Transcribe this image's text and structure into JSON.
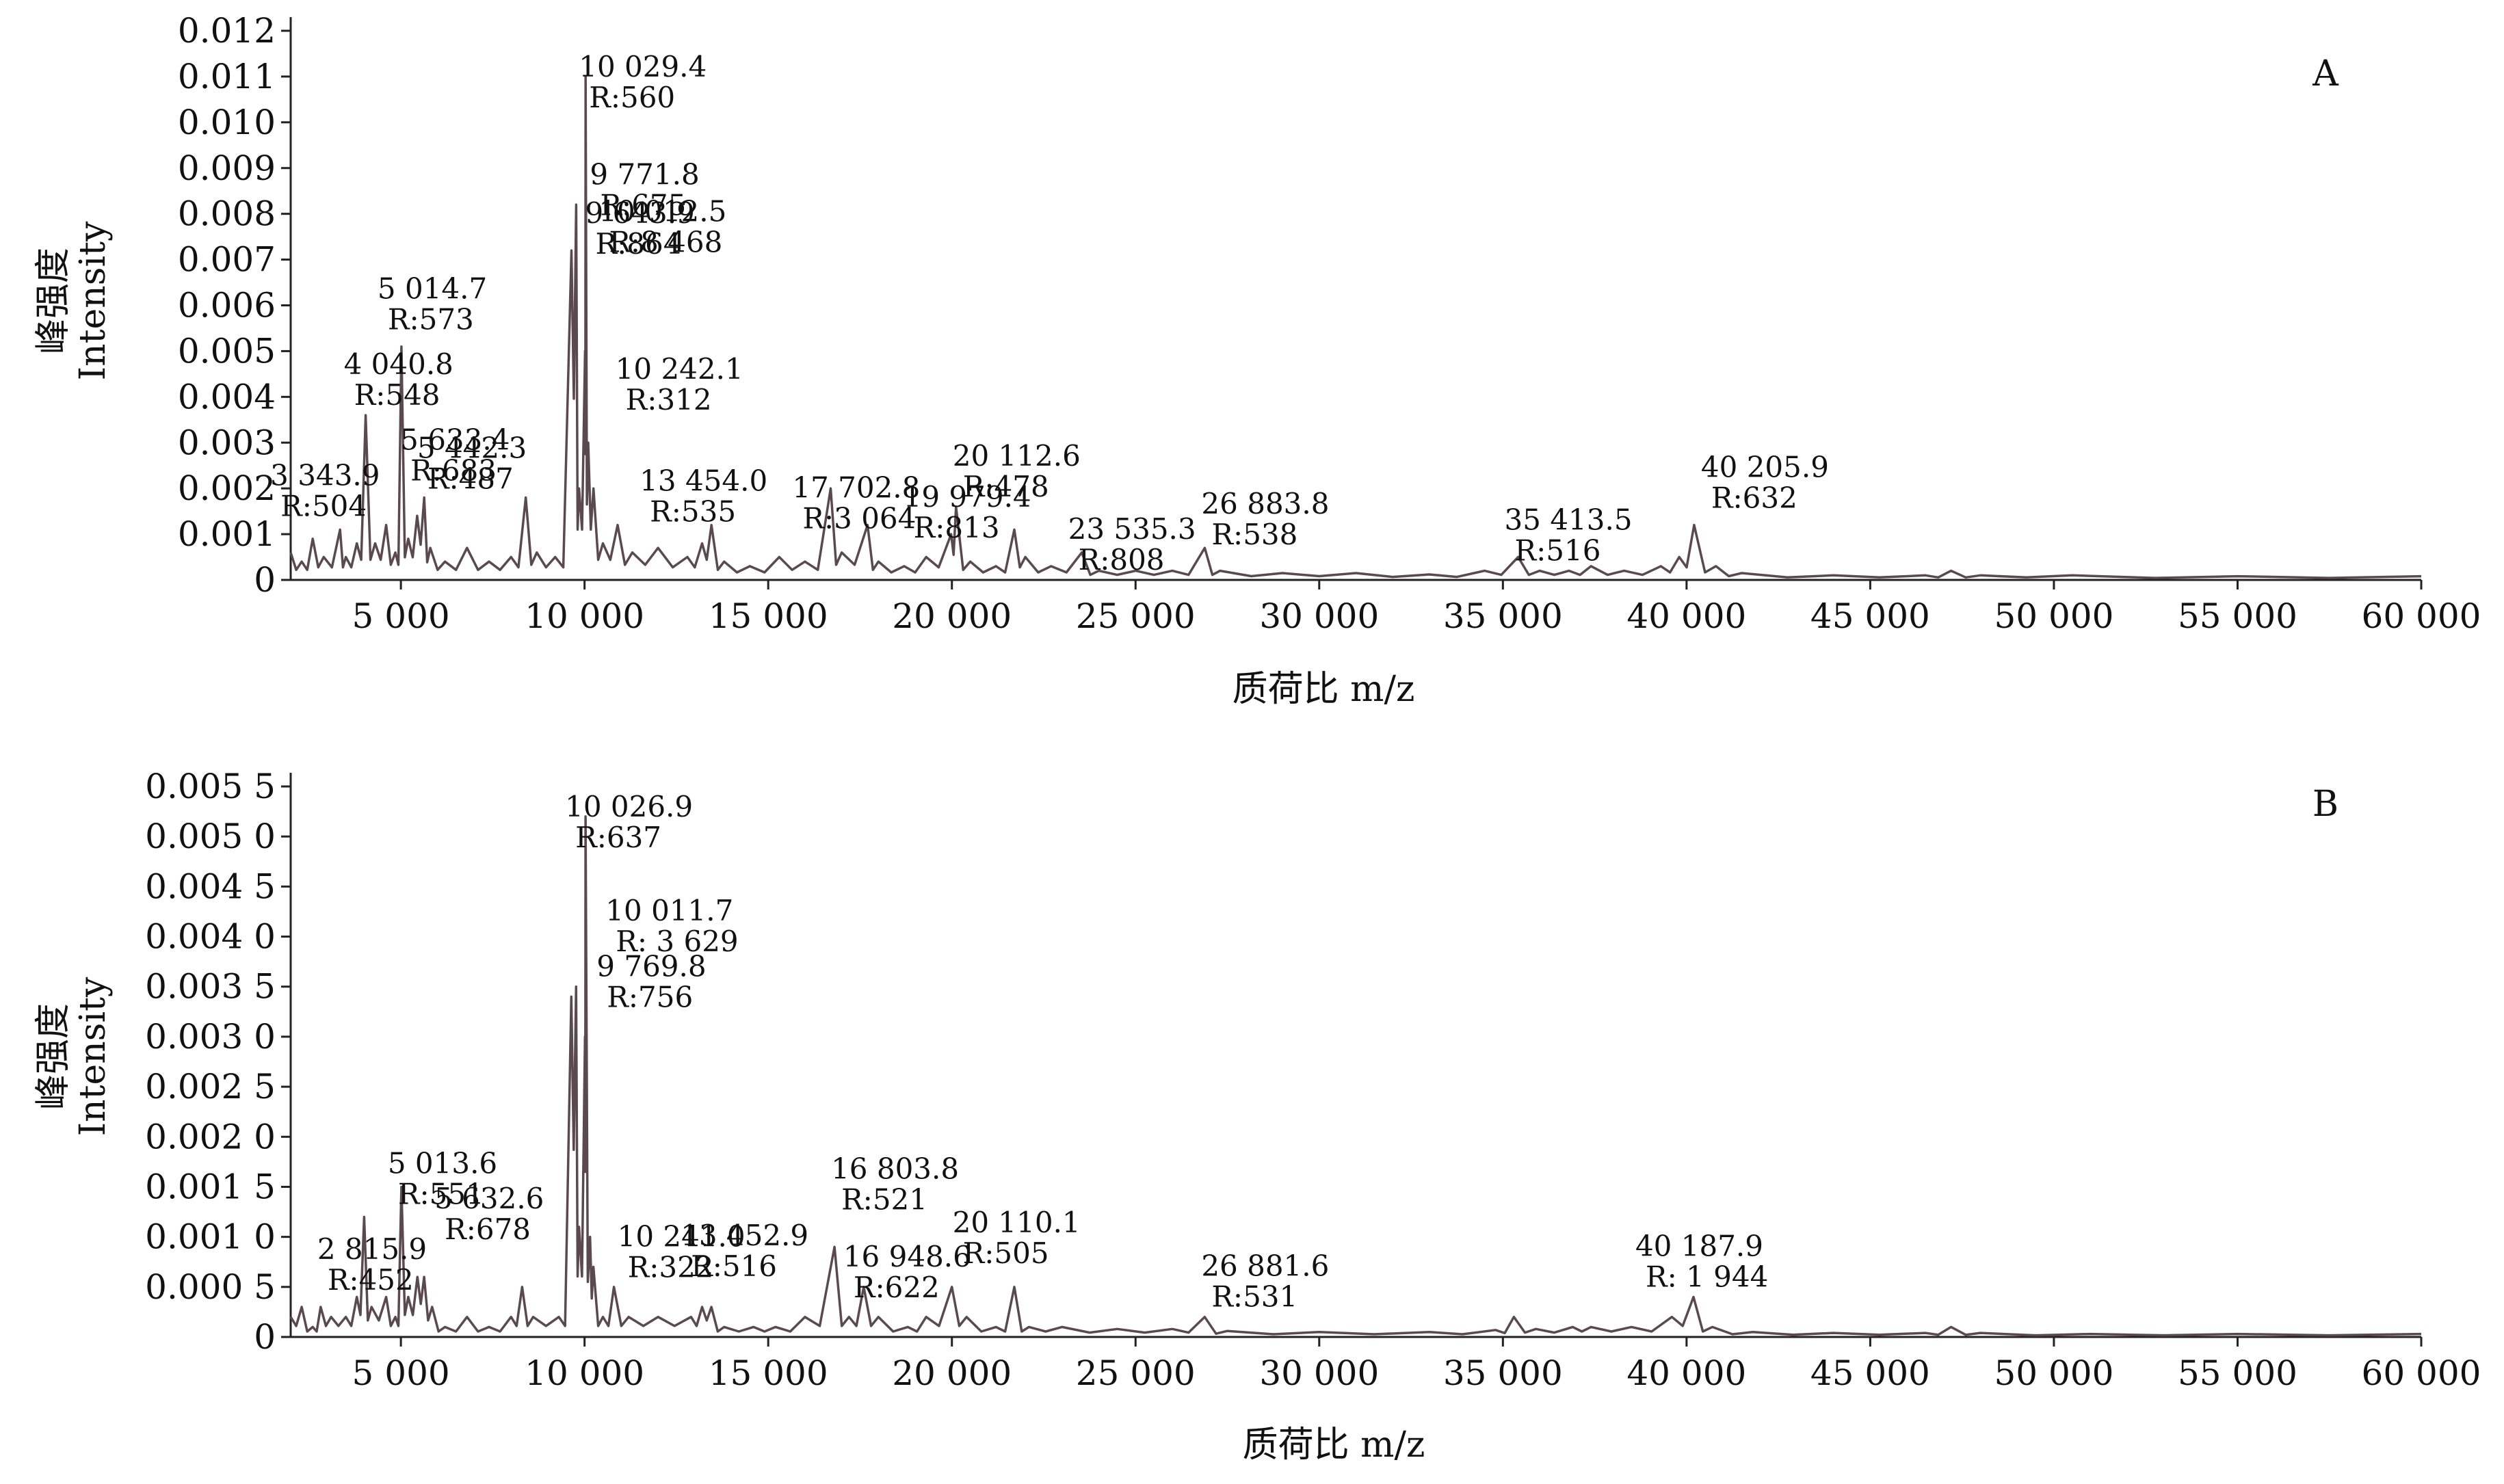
{
  "chart_data": [
    {
      "type": "line",
      "panel_label": "A",
      "xlabel": "质荷比 m/z",
      "ylabel_cn": "峰强度",
      "ylabel_en": "Intensity",
      "xlim": [
        2000,
        60000
      ],
      "ylim": [
        0,
        0.012
      ],
      "x_ticks": [
        5000,
        10000,
        15000,
        20000,
        25000,
        30000,
        35000,
        40000,
        45000,
        50000,
        55000,
        60000
      ],
      "x_tick_labels": [
        "5 000",
        "10 000",
        "15 000",
        "20 000",
        "25 000",
        "30 000",
        "35 000",
        "40 000",
        "45 000",
        "50 000",
        "55 000",
        "60 000"
      ],
      "y_ticks": [
        0,
        0.001,
        0.002,
        0.003,
        0.004,
        0.005,
        0.006,
        0.007,
        0.008,
        0.009,
        0.01,
        0.011,
        0.012
      ],
      "y_tick_labels": [
        "0",
        "0.001",
        "0.002",
        "0.003",
        "0.004",
        "0.005",
        "0.006",
        "0.007",
        "0.008",
        "0.009",
        "0.010",
        "0.011",
        "0.012"
      ],
      "line_color": "#5a4a50",
      "grid": false,
      "spectrum": [
        [
          2000,
          0.0006
        ],
        [
          2300,
          0.0004
        ],
        [
          2600,
          0.0009
        ],
        [
          2900,
          0.0005
        ],
        [
          3344,
          0.0011
        ],
        [
          3500,
          0.0005
        ],
        [
          3800,
          0.0008
        ],
        [
          4041,
          0.0036
        ],
        [
          4300,
          0.0008
        ],
        [
          4600,
          0.0012
        ],
        [
          4850,
          0.0006
        ],
        [
          5015,
          0.0051
        ],
        [
          5200,
          0.0009
        ],
        [
          5443,
          0.0014
        ],
        [
          5634,
          0.0018
        ],
        [
          5800,
          0.0007
        ],
        [
          6200,
          0.0004
        ],
        [
          6800,
          0.0007
        ],
        [
          7400,
          0.0004
        ],
        [
          8000,
          0.0005
        ],
        [
          8400,
          0.0018
        ],
        [
          8700,
          0.0006
        ],
        [
          9200,
          0.0005
        ],
        [
          9644,
          0.0072
        ],
        [
          9772,
          0.0082
        ],
        [
          9850,
          0.002
        ],
        [
          10013,
          0.005
        ],
        [
          10029,
          0.011
        ],
        [
          10100,
          0.003
        ],
        [
          10242,
          0.002
        ],
        [
          10500,
          0.0008
        ],
        [
          10900,
          0.0012
        ],
        [
          11300,
          0.0006
        ],
        [
          12000,
          0.0007
        ],
        [
          12800,
          0.0005
        ],
        [
          13200,
          0.0008
        ],
        [
          13454,
          0.0012
        ],
        [
          13800,
          0.0004
        ],
        [
          14500,
          0.0003
        ],
        [
          15300,
          0.0005
        ],
        [
          16000,
          0.0004
        ],
        [
          16700,
          0.002
        ],
        [
          17000,
          0.0006
        ],
        [
          17703,
          0.0012
        ],
        [
          18000,
          0.0004
        ],
        [
          18700,
          0.0003
        ],
        [
          19300,
          0.0005
        ],
        [
          19979,
          0.001
        ],
        [
          20113,
          0.0016
        ],
        [
          20500,
          0.0004
        ],
        [
          21200,
          0.0003
        ],
        [
          21700,
          0.0011
        ],
        [
          22000,
          0.0005
        ],
        [
          22700,
          0.0003
        ],
        [
          23535,
          0.0006
        ],
        [
          24000,
          0.0002
        ],
        [
          25000,
          0.0002
        ],
        [
          26000,
          0.0002
        ],
        [
          26884,
          0.0007
        ],
        [
          27300,
          0.0002
        ],
        [
          29000,
          0.00015
        ],
        [
          31000,
          0.00015
        ],
        [
          33000,
          0.00012
        ],
        [
          34500,
          0.0002
        ],
        [
          35414,
          0.0005
        ],
        [
          36000,
          0.0002
        ],
        [
          36800,
          0.0002
        ],
        [
          37400,
          0.0003
        ],
        [
          38300,
          0.0002
        ],
        [
          39300,
          0.0003
        ],
        [
          39800,
          0.0005
        ],
        [
          40206,
          0.0012
        ],
        [
          40800,
          0.0003
        ],
        [
          41500,
          0.00015
        ],
        [
          44000,
          0.0001
        ],
        [
          46500,
          0.0001
        ],
        [
          47200,
          0.0002
        ],
        [
          48000,
          0.0001
        ],
        [
          50500,
          0.0001
        ],
        [
          55000,
          8e-05
        ],
        [
          60000,
          8e-05
        ]
      ],
      "peak_labels": [
        {
          "x": 4040.8,
          "y": 0.0036,
          "mz_label": "4 040.8",
          "r_label": "R:548"
        },
        {
          "x": 5014.7,
          "y": 0.0051,
          "mz_label": "5 014.7",
          "r_label": "R:573"
        },
        {
          "x": 3343.9,
          "y": 0.0011,
          "mz_label": "3 343.9",
          "r_label": "R:504"
        },
        {
          "x": 5633.4,
          "y": 0.0018,
          "mz_label": "5 633.4",
          "r_label": "R:683"
        },
        {
          "x": 5442.3,
          "y": 0.0014,
          "mz_label": "5 442.3",
          "r_label": "R:487"
        },
        {
          "x": 10029.4,
          "y": 0.011,
          "mz_label": "10 029.4",
          "r_label": "R:560"
        },
        {
          "x": 9771.8,
          "y": 0.0082,
          "mz_label": "9 771.8",
          "r_label": "R:675"
        },
        {
          "x": 10012.5,
          "y": 0.005,
          "mz_label": "10 012.5",
          "r_label": "R:8 468"
        },
        {
          "x": 10242.1,
          "y": 0.002,
          "mz_label": "10 242.1",
          "r_label": "R:312"
        },
        {
          "x": 9643.9,
          "y": 0.0072,
          "mz_label": "9 643.9",
          "r_label": "R:864"
        },
        {
          "x": 13454.0,
          "y": 0.0012,
          "mz_label": "13 454.0",
          "r_label": "R:535"
        },
        {
          "x": 17702.8,
          "y": 0.0012,
          "mz_label": "17 702.8",
          "r_label": "R:3 064"
        },
        {
          "x": 20112.6,
          "y": 0.0016,
          "mz_label": "20 112.6",
          "r_label": "R:478"
        },
        {
          "x": 19979.4,
          "y": 0.001,
          "mz_label": "19 979.4",
          "r_label": "R:813"
        },
        {
          "x": 23535.3,
          "y": 0.0006,
          "mz_label": "23 535.3",
          "r_label": "R:808"
        },
        {
          "x": 26883.8,
          "y": 0.0007,
          "mz_label": "26 883.8",
          "r_label": "R:538"
        },
        {
          "x": 35413.5,
          "y": 0.0005,
          "mz_label": "35 413.5",
          "r_label": "R:516"
        },
        {
          "x": 40205.9,
          "y": 0.0012,
          "mz_label": "40 205.9",
          "r_label": "R:632"
        }
      ]
    },
    {
      "type": "line",
      "panel_label": "B",
      "xlabel": "质荷比 m/z",
      "ylabel_cn": "峰强度",
      "ylabel_en": "Intensity",
      "xlim": [
        2000,
        60000
      ],
      "ylim": [
        0,
        0.0055
      ],
      "x_ticks": [
        5000,
        10000,
        15000,
        20000,
        25000,
        30000,
        35000,
        40000,
        45000,
        50000,
        55000,
        60000
      ],
      "x_tick_labels": [
        "5 000",
        "10 000",
        "15 000",
        "20 000",
        "25 000",
        "30 000",
        "35 000",
        "40 000",
        "45 000",
        "50 000",
        "55 000",
        "60 000"
      ],
      "y_ticks": [
        0,
        0.0005,
        0.001,
        0.0015,
        0.002,
        0.0025,
        0.003,
        0.0035,
        0.004,
        0.0045,
        0.005,
        0.0055
      ],
      "y_tick_labels": [
        "0",
        "0.000 5",
        "0.001 0",
        "0.001 5",
        "0.002 0",
        "0.002 5",
        "0.003 0",
        "0.003 5",
        "0.004 0",
        "0.004 5",
        "0.005 0",
        "0.005 5"
      ],
      "line_color": "#5a4a50",
      "grid": false,
      "spectrum": [
        [
          2000,
          0.0002
        ],
        [
          2300,
          0.0003
        ],
        [
          2600,
          0.0001
        ],
        [
          2816,
          0.0003
        ],
        [
          3100,
          0.0002
        ],
        [
          3500,
          0.0002
        ],
        [
          3800,
          0.0004
        ],
        [
          4000,
          0.0012
        ],
        [
          4200,
          0.0003
        ],
        [
          4600,
          0.0004
        ],
        [
          4850,
          0.0002
        ],
        [
          5014,
          0.0015
        ],
        [
          5200,
          0.0004
        ],
        [
          5450,
          0.0006
        ],
        [
          5633,
          0.0006
        ],
        [
          5850,
          0.0003
        ],
        [
          6200,
          0.0001
        ],
        [
          6800,
          0.0002
        ],
        [
          7400,
          0.0001
        ],
        [
          8000,
          0.0002
        ],
        [
          8300,
          0.0005
        ],
        [
          8600,
          0.0002
        ],
        [
          9300,
          0.0002
        ],
        [
          9640,
          0.0034
        ],
        [
          9770,
          0.0035
        ],
        [
          9850,
          0.0011
        ],
        [
          10012,
          0.003
        ],
        [
          10027,
          0.0052
        ],
        [
          10150,
          0.001
        ],
        [
          10241,
          0.0007
        ],
        [
          10500,
          0.0002
        ],
        [
          10800,
          0.0005
        ],
        [
          11200,
          0.0002
        ],
        [
          12000,
          0.0002
        ],
        [
          12900,
          0.0002
        ],
        [
          13200,
          0.0003
        ],
        [
          13453,
          0.0003
        ],
        [
          13800,
          0.0001
        ],
        [
          14600,
          0.0001
        ],
        [
          15200,
          0.0001
        ],
        [
          16000,
          0.0002
        ],
        [
          16804,
          0.0009
        ],
        [
          17200,
          0.0002
        ],
        [
          17600,
          0.0005
        ],
        [
          18000,
          0.0002
        ],
        [
          18800,
          0.0001
        ],
        [
          19300,
          0.0002
        ],
        [
          20000,
          0.0005
        ],
        [
          20400,
          0.0002
        ],
        [
          21200,
          0.0001
        ],
        [
          21700,
          0.0005
        ],
        [
          22100,
          0.0001
        ],
        [
          23000,
          0.0001
        ],
        [
          24500,
          8e-05
        ],
        [
          26000,
          8e-05
        ],
        [
          26882,
          0.0002
        ],
        [
          27500,
          6e-05
        ],
        [
          30000,
          5e-05
        ],
        [
          33000,
          5e-05
        ],
        [
          34800,
          7e-05
        ],
        [
          35300,
          0.0002
        ],
        [
          35900,
          8e-05
        ],
        [
          36900,
          0.0001
        ],
        [
          37400,
          0.0001
        ],
        [
          38500,
          0.0001
        ],
        [
          39600,
          0.0002
        ],
        [
          40188,
          0.0004
        ],
        [
          40700,
          0.0001
        ],
        [
          41800,
          5e-05
        ],
        [
          44000,
          4e-05
        ],
        [
          46500,
          4e-05
        ],
        [
          47200,
          0.0001
        ],
        [
          48000,
          4e-05
        ],
        [
          51000,
          3e-05
        ],
        [
          55000,
          3e-05
        ],
        [
          60000,
          3e-05
        ]
      ],
      "peak_labels": [
        {
          "x": 10026.9,
          "y": 0.0052,
          "mz_label": "10 026.9",
          "r_label": "R:637"
        },
        {
          "x": 9769.8,
          "y": 0.0035,
          "mz_label": "9 769.8",
          "r_label": "R:756"
        },
        {
          "x": 10011.7,
          "y": 0.003,
          "mz_label": "10 011.7",
          "r_label": "R: 3 629"
        },
        {
          "x": 5013.6,
          "y": 0.0015,
          "mz_label": "5 013.6",
          "r_label": "R:551"
        },
        {
          "x": 5632.6,
          "y": 0.0006,
          "mz_label": "5 632.6",
          "r_label": "R:678"
        },
        {
          "x": 2815.9,
          "y": 0.0003,
          "mz_label": "2 815.9",
          "r_label": "R:452"
        },
        {
          "x": 10241.0,
          "y": 0.0007,
          "mz_label": "10 241.0",
          "r_label": "R:322"
        },
        {
          "x": 13452.9,
          "y": 0.0003,
          "mz_label": "13 452.9",
          "r_label": "R:516"
        },
        {
          "x": 16803.8,
          "y": 0.0009,
          "mz_label": "16 803.8",
          "r_label": "R:521"
        },
        {
          "x": 16948.6,
          "y": 0.0005,
          "mz_label": "16 948.6",
          "r_label": "R:622"
        },
        {
          "x": 20110.1,
          "y": 0.0005,
          "mz_label": "20 110.1",
          "r_label": "R:505"
        },
        {
          "x": 26881.6,
          "y": 0.0002,
          "mz_label": "26 881.6",
          "r_label": "R:531"
        },
        {
          "x": 40187.9,
          "y": 0.0004,
          "mz_label": "40 187.9",
          "r_label": "R: 1 944"
        }
      ]
    }
  ]
}
